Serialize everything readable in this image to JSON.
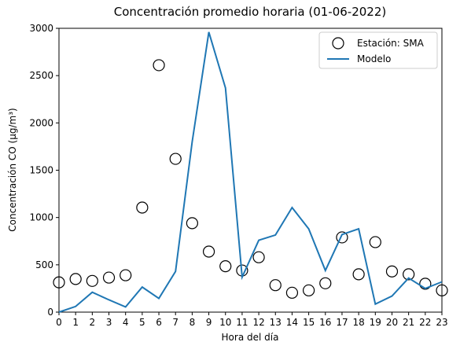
{
  "chart_data": {
    "type": "line",
    "title": "Concentración promedio horaria (01-06-2022)",
    "xlabel": "Hora del día",
    "ylabel": "Concentración CO (μg/m³)",
    "x": [
      0,
      1,
      2,
      3,
      4,
      5,
      6,
      7,
      8,
      9,
      10,
      11,
      12,
      13,
      14,
      15,
      16,
      17,
      18,
      19,
      20,
      21,
      22,
      23
    ],
    "series": [
      {
        "name": "Estación: SMA",
        "color": "#000000",
        "style": "markers",
        "values": [
          315,
          350,
          330,
          365,
          390,
          1105,
          2610,
          1620,
          940,
          640,
          485,
          440,
          580,
          285,
          205,
          230,
          305,
          790,
          400,
          740,
          430,
          400,
          300,
          230
        ]
      },
      {
        "name": "Modelo",
        "color": "#1f77b4",
        "style": "line",
        "values": [
          0,
          60,
          210,
          130,
          55,
          265,
          145,
          430,
          1800,
          2960,
          2370,
          370,
          760,
          815,
          1105,
          880,
          440,
          820,
          880,
          85,
          170,
          360,
          250,
          320
        ]
      }
    ],
    "xlim": [
      0,
      23
    ],
    "xticks": [
      0,
      1,
      2,
      3,
      4,
      5,
      6,
      7,
      8,
      9,
      10,
      11,
      12,
      13,
      14,
      15,
      16,
      17,
      18,
      19,
      20,
      21,
      22,
      23
    ],
    "ylim": [
      0,
      3000
    ],
    "yticks": [
      0,
      500,
      1000,
      1500,
      2000,
      2500,
      3000
    ],
    "legend": "upper right"
  }
}
